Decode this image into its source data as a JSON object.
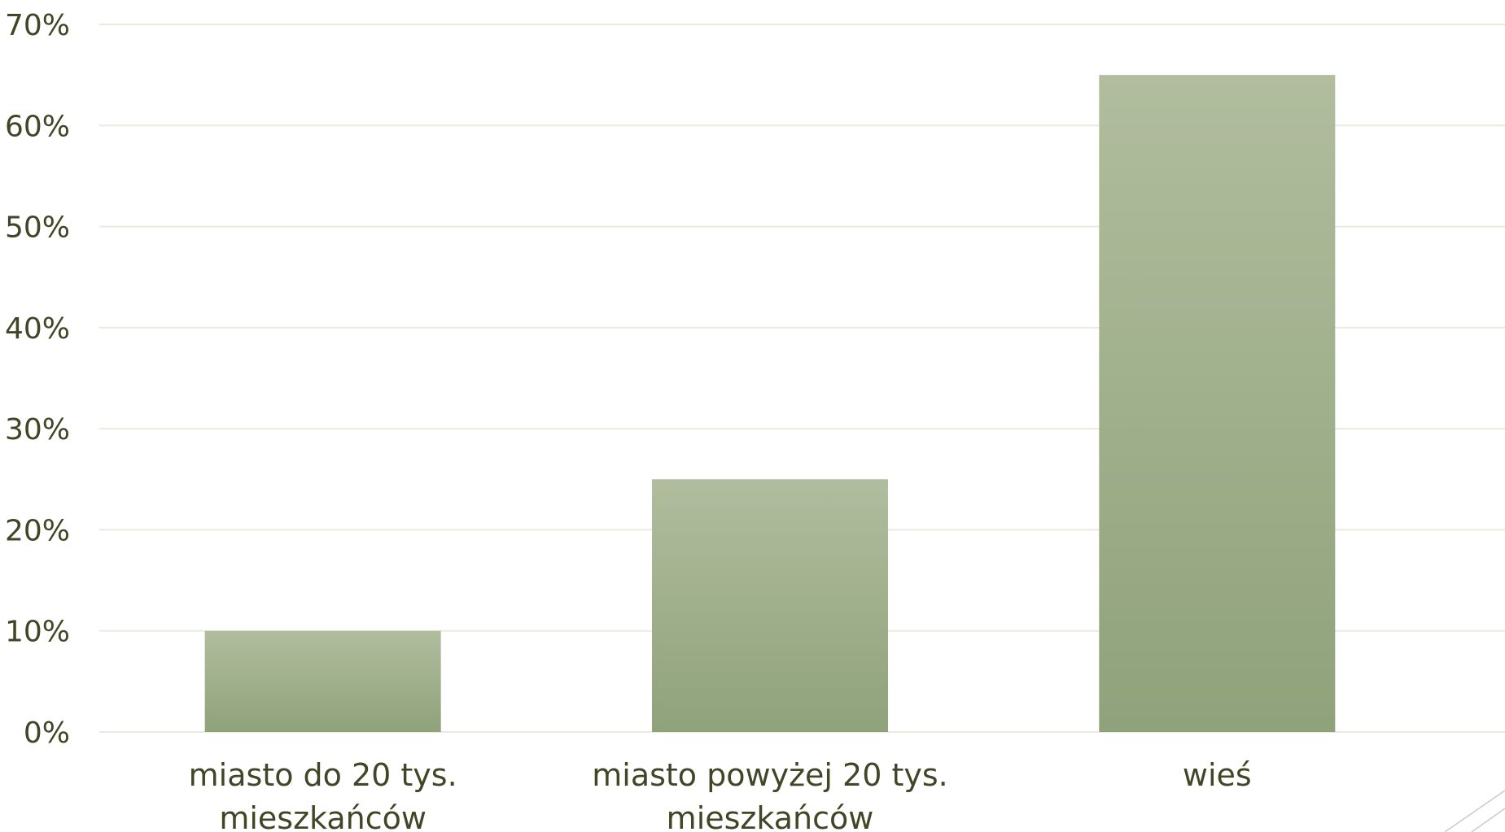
{
  "chart_data": {
    "type": "bar",
    "categories": [
      [
        "miasto do 20 tys.",
        "mieszkańców"
      ],
      [
        "miasto powyżej 20 tys.",
        "mieszkańców"
      ],
      [
        "wieś"
      ]
    ],
    "values": [
      10,
      25,
      65
    ],
    "ylim": [
      0,
      70
    ],
    "yticks": [
      0,
      10,
      20,
      30,
      40,
      50,
      60,
      70
    ],
    "ytick_labels": [
      "0%",
      "10%",
      "20%",
      "30%",
      "40%",
      "50%",
      "60%",
      "70%"
    ],
    "title": "",
    "xlabel": "",
    "ylabel": "",
    "grid": true,
    "legend": "none",
    "colors": {
      "bar_top": "#B1BD9E",
      "bar_bottom": "#8FA27A",
      "gridline": "#E9EBDD",
      "text": "#404626"
    }
  }
}
